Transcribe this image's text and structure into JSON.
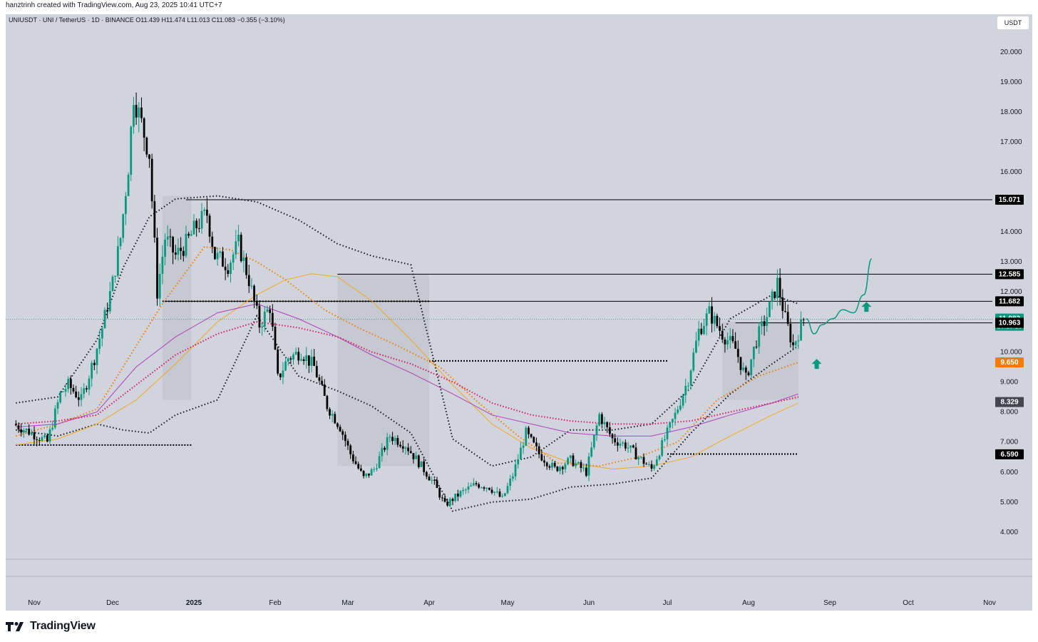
{
  "header": {
    "attribution": "hanztrinh created with TradingView.com, Aug 23, 2025 10:41 UTC+7",
    "symbol_line": "UNIUSDT · UNI / TetherUS · 1D · BINANCE  O11.439  H11.474  L11.013  C11.083  −0.355 (−3.10%)",
    "currency_button": "USDT"
  },
  "footer": {
    "brand": "TradingView"
  },
  "colors": {
    "background": "#d1d4dc",
    "candle_up": "#089981",
    "candle_down": "#000000",
    "ma_orange": "#f5a623",
    "ma_dotted_orange": "#f57c00",
    "ma_purple": "#b040c0",
    "ma_dotted_red": "#d81b60",
    "label_black": "#000000",
    "label_green": "#089981",
    "label_orange": "#f57c00",
    "label_gray": "#434651"
  },
  "chart_data": {
    "type": "candlestick",
    "title": "UNIUSDT · UNI / TetherUS · 1D · BINANCE",
    "x_ticks": [
      {
        "date": "2024-11-01",
        "label": "Nov",
        "bold": false
      },
      {
        "date": "2024-12-01",
        "label": "Dec",
        "bold": false
      },
      {
        "date": "2025-01-01",
        "label": "2025",
        "bold": true
      },
      {
        "date": "2025-02-01",
        "label": "Feb",
        "bold": false
      },
      {
        "date": "2025-03-01",
        "label": "Mar",
        "bold": false
      },
      {
        "date": "2025-04-01",
        "label": "Apr",
        "bold": false
      },
      {
        "date": "2025-05-01",
        "label": "May",
        "bold": false
      },
      {
        "date": "2025-06-01",
        "label": "Jun",
        "bold": false
      },
      {
        "date": "2025-07-01",
        "label": "Jul",
        "bold": false
      },
      {
        "date": "2025-08-01",
        "label": "Aug",
        "bold": false
      },
      {
        "date": "2025-09-01",
        "label": "Sep",
        "bold": false
      },
      {
        "date": "2025-10-01",
        "label": "Oct",
        "bold": false
      },
      {
        "date": "2025-11-01",
        "label": "Nov",
        "bold": false
      }
    ],
    "y_ticks": [
      "4.000",
      "5.000",
      "6.000",
      "7.000",
      "8.000",
      "9.000",
      "10.000",
      "11.000",
      "12.000",
      "13.000",
      "14.000",
      "15.000",
      "16.000",
      "17.000",
      "18.000",
      "19.000",
      "20.000"
    ],
    "ylim": [
      3.0,
      21.0
    ],
    "price_labels": [
      {
        "value": 15.071,
        "text": "15.071",
        "color": "#000000"
      },
      {
        "value": 12.585,
        "text": "12.585",
        "color": "#000000"
      },
      {
        "value": 11.682,
        "text": "11.682",
        "color": "#000000"
      },
      {
        "value": 11.083,
        "text": "11.083",
        "sub": "20:18:18",
        "color": "#089981"
      },
      {
        "value": 10.971,
        "text": "10.971",
        "color": "#000000"
      },
      {
        "value": 10.963,
        "text": "10.963",
        "color": "#000000"
      },
      {
        "value": 9.65,
        "text": "9.650",
        "color": "#f57c00"
      },
      {
        "value": 8.329,
        "text": "8.329",
        "color": "#434651"
      },
      {
        "value": 6.59,
        "text": "6.590",
        "color": "#000000"
      }
    ],
    "horizontal_levels": [
      {
        "y": 15.071,
        "from": "2024-12-29",
        "to": "2025-11-30",
        "style": "solid"
      },
      {
        "y": 12.585,
        "from": "2025-02-25",
        "to": "2025-11-30",
        "style": "solid"
      },
      {
        "y": 11.682,
        "from": "2024-12-20",
        "to": "2025-11-30",
        "style": "solid"
      },
      {
        "y": 10.963,
        "from": "2025-07-27",
        "to": "2025-11-30",
        "style": "solid"
      },
      {
        "y": 11.682,
        "from": "2024-12-20",
        "to": "2025-04-01",
        "style": "dotted"
      },
      {
        "y": 9.7,
        "from": "2025-04-01",
        "to": "2025-07-01",
        "style": "dotted"
      },
      {
        "y": 6.9,
        "from": "2024-10-25",
        "to": "2024-12-31",
        "style": "dotted"
      },
      {
        "y": 6.6,
        "from": "2025-07-01",
        "to": "2025-08-20",
        "style": "dotted"
      }
    ],
    "shaded_zones": [
      {
        "from": "2024-12-20",
        "to": "2024-12-31",
        "y0": 8.4,
        "y1": 15.2
      },
      {
        "from": "2025-02-25",
        "to": "2025-04-01",
        "y0": 6.2,
        "y1": 12.6
      },
      {
        "from": "2025-07-22",
        "to": "2025-08-20",
        "y0": 8.4,
        "y1": 11.0
      }
    ],
    "series": [
      {
        "name": "close",
        "dates": [
          "2024-10-25",
          "2024-11-01",
          "2024-11-07",
          "2024-11-12",
          "2024-11-15",
          "2024-11-20",
          "2024-11-25",
          "2024-11-28",
          "2024-12-02",
          "2024-12-05",
          "2024-12-08",
          "2024-12-10",
          "2024-12-13",
          "2024-12-16",
          "2024-12-19",
          "2024-12-22",
          "2024-12-26",
          "2024-12-30",
          "2025-01-03",
          "2025-01-07",
          "2025-01-10",
          "2025-01-15",
          "2025-01-19",
          "2025-01-23",
          "2025-01-27",
          "2025-01-31",
          "2025-02-03",
          "2025-02-07",
          "2025-02-12",
          "2025-02-17",
          "2025-02-22",
          "2025-02-27",
          "2025-03-03",
          "2025-03-08",
          "2025-03-12",
          "2025-03-18",
          "2025-03-24",
          "2025-03-30",
          "2025-04-04",
          "2025-04-08",
          "2025-04-14",
          "2025-04-20",
          "2025-04-25",
          "2025-04-30",
          "2025-05-04",
          "2025-05-09",
          "2025-05-14",
          "2025-05-20",
          "2025-05-26",
          "2025-06-01",
          "2025-06-06",
          "2025-06-11",
          "2025-06-16",
          "2025-06-21",
          "2025-06-26",
          "2025-07-01",
          "2025-07-05",
          "2025-07-10",
          "2025-07-14",
          "2025-07-18",
          "2025-07-23",
          "2025-07-28",
          "2025-08-01",
          "2025-08-05",
          "2025-08-09",
          "2025-08-13",
          "2025-08-16",
          "2025-08-19",
          "2025-08-23"
        ],
        "values": [
          7.6,
          7.3,
          7.0,
          8.6,
          8.9,
          8.4,
          9.8,
          10.8,
          12.3,
          13.8,
          16.2,
          18.6,
          17.6,
          16.6,
          12.0,
          13.8,
          13.2,
          13.6,
          14.2,
          14.6,
          13.2,
          12.9,
          13.6,
          12.4,
          10.9,
          11.5,
          9.1,
          9.8,
          10.0,
          9.5,
          8.2,
          7.5,
          6.6,
          5.8,
          6.1,
          7.2,
          6.9,
          6.2,
          5.6,
          4.9,
          5.3,
          5.6,
          5.5,
          5.1,
          5.9,
          7.3,
          6.6,
          6.1,
          6.4,
          6.0,
          7.9,
          7.1,
          6.9,
          6.5,
          6.1,
          7.1,
          7.9,
          9.1,
          10.7,
          11.3,
          10.6,
          10.1,
          9.1,
          10.4,
          11.2,
          12.3,
          11.1,
          10.2,
          11.083
        ]
      },
      {
        "name": "bbands_upper",
        "dates": [
          "2024-10-25",
          "2024-11-10",
          "2024-11-25",
          "2024-12-05",
          "2024-12-15",
          "2024-12-25",
          "2025-01-10",
          "2025-01-25",
          "2025-02-10",
          "2025-02-25",
          "2025-03-10",
          "2025-03-25",
          "2025-04-10",
          "2025-04-25",
          "2025-05-10",
          "2025-05-25",
          "2025-06-10",
          "2025-06-25",
          "2025-07-10",
          "2025-07-25",
          "2025-08-10",
          "2025-08-20"
        ],
        "values": [
          8.3,
          8.5,
          10.4,
          12.8,
          14.5,
          15.1,
          15.2,
          15.0,
          14.4,
          13.6,
          13.2,
          12.9,
          7.1,
          6.2,
          6.5,
          7.4,
          7.4,
          7.6,
          8.8,
          11.1,
          11.9,
          11.6
        ]
      },
      {
        "name": "bbands_lower",
        "dates": [
          "2024-10-25",
          "2024-11-10",
          "2024-11-25",
          "2024-12-05",
          "2024-12-15",
          "2024-12-25",
          "2025-01-10",
          "2025-01-25",
          "2025-02-10",
          "2025-02-25",
          "2025-03-10",
          "2025-03-25",
          "2025-04-10",
          "2025-04-25",
          "2025-05-10",
          "2025-05-25",
          "2025-06-10",
          "2025-06-25",
          "2025-07-10",
          "2025-07-25",
          "2025-08-10",
          "2025-08-20"
        ],
        "values": [
          7.4,
          7.2,
          7.6,
          7.4,
          7.3,
          7.9,
          8.4,
          11.2,
          9.2,
          8.7,
          8.2,
          7.3,
          4.7,
          5.0,
          5.1,
          5.5,
          5.6,
          5.8,
          7.3,
          8.6,
          9.6,
          10.2
        ]
      },
      {
        "name": "ma_orange",
        "dates": [
          "2024-10-25",
          "2024-11-10",
          "2024-11-25",
          "2024-12-10",
          "2024-12-25",
          "2025-01-10",
          "2025-01-25",
          "2025-02-05",
          "2025-02-15",
          "2025-02-25",
          "2025-03-10",
          "2025-03-25",
          "2025-04-10",
          "2025-04-25",
          "2025-05-10",
          "2025-05-25",
          "2025-06-10",
          "2025-06-25",
          "2025-07-10",
          "2025-07-25",
          "2025-08-10",
          "2025-08-20"
        ],
        "values": [
          6.9,
          7.1,
          7.6,
          8.4,
          9.6,
          11.0,
          11.9,
          12.4,
          12.6,
          12.5,
          11.7,
          10.4,
          8.9,
          7.6,
          6.8,
          6.3,
          6.1,
          6.2,
          6.5,
          7.2,
          7.9,
          8.3
        ]
      },
      {
        "name": "ma_dotted_orange",
        "dates": [
          "2024-10-25",
          "2024-11-10",
          "2024-11-25",
          "2024-12-10",
          "2024-12-20",
          "2025-01-05",
          "2025-01-15",
          "2025-01-25",
          "2025-02-05",
          "2025-02-20",
          "2025-03-05",
          "2025-03-20",
          "2025-04-05",
          "2025-04-20",
          "2025-05-05",
          "2025-05-20",
          "2025-06-05",
          "2025-06-20",
          "2025-07-05",
          "2025-07-20",
          "2025-08-05",
          "2025-08-20"
        ],
        "values": [
          7.2,
          7.6,
          8.1,
          10.2,
          11.6,
          13.5,
          13.4,
          13.0,
          12.4,
          11.4,
          10.8,
          10.2,
          9.5,
          8.3,
          7.2,
          6.3,
          6.2,
          6.5,
          7.0,
          8.4,
          9.2,
          9.65
        ]
      },
      {
        "name": "ma_purple",
        "dates": [
          "2024-10-25",
          "2024-11-10",
          "2024-11-25",
          "2024-12-10",
          "2024-12-25",
          "2025-01-10",
          "2025-01-25",
          "2025-02-10",
          "2025-02-25",
          "2025-03-10",
          "2025-03-25",
          "2025-04-10",
          "2025-04-25",
          "2025-05-10",
          "2025-05-25",
          "2025-06-10",
          "2025-06-25",
          "2025-07-10",
          "2025-07-25",
          "2025-08-10",
          "2025-08-20"
        ],
        "values": [
          7.5,
          7.6,
          8.0,
          9.5,
          10.5,
          11.3,
          11.6,
          11.1,
          10.5,
          9.9,
          9.3,
          8.6,
          7.9,
          7.6,
          7.3,
          7.2,
          7.2,
          7.5,
          7.9,
          8.3,
          8.6
        ]
      },
      {
        "name": "ma_dotted_red",
        "dates": [
          "2024-10-25",
          "2024-11-10",
          "2024-11-25",
          "2024-12-10",
          "2024-12-25",
          "2025-01-10",
          "2025-01-25",
          "2025-02-10",
          "2025-02-25",
          "2025-03-10",
          "2025-03-25",
          "2025-04-10",
          "2025-04-25",
          "2025-05-10",
          "2025-05-25",
          "2025-06-10",
          "2025-06-25",
          "2025-07-10",
          "2025-07-25",
          "2025-08-10",
          "2025-08-20"
        ],
        "values": [
          7.6,
          7.7,
          7.9,
          8.9,
          9.9,
          10.6,
          11.0,
          10.8,
          10.5,
          10.0,
          9.6,
          9.0,
          8.3,
          7.9,
          7.7,
          7.6,
          7.6,
          7.7,
          8.0,
          8.3,
          8.5
        ]
      },
      {
        "name": "projection",
        "dates": [
          "2025-08-23",
          "2025-08-26",
          "2025-08-29",
          "2025-09-02",
          "2025-09-06",
          "2025-09-10",
          "2025-09-14",
          "2025-09-17"
        ],
        "values": [
          11.1,
          10.6,
          10.9,
          11.1,
          11.4,
          11.3,
          11.9,
          13.1
        ]
      }
    ],
    "annotations": [
      {
        "type": "arrow-up",
        "date": "2025-08-27",
        "y": 9.6,
        "color": "#089981"
      },
      {
        "type": "arrow-up",
        "date": "2025-09-15",
        "y": 11.5,
        "color": "#089981"
      }
    ],
    "grid": false,
    "legend": "none"
  }
}
